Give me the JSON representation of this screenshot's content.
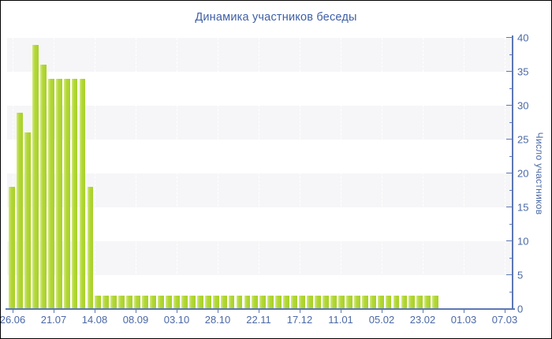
{
  "chart_data": {
    "type": "bar",
    "title": "Динамика участников беседы",
    "xlabel": "",
    "ylabel": "Число участников",
    "x_tick_labels": [
      "26.06",
      "21.07",
      "14.08",
      "08.09",
      "03.10",
      "28.10",
      "22.11",
      "17.12",
      "11.01",
      "05.02",
      "23.02",
      "01.03",
      "07.03"
    ],
    "y_ticks": [
      0,
      5,
      10,
      15,
      20,
      25,
      30,
      35,
      40
    ],
    "y_minor_tick_step": 2.5,
    "ylim": [
      0,
      40
    ],
    "grid": "alternating 5-unit horizontal bands, faint dashed vertical lines at x ticks",
    "legend_position": "none",
    "values": [
      18,
      29,
      26,
      39,
      36,
      34,
      34,
      34,
      34,
      34,
      18,
      2,
      2,
      2,
      2,
      2,
      2,
      2,
      2,
      2,
      2,
      2,
      2,
      2,
      2,
      2,
      2,
      2,
      2,
      2,
      2,
      2,
      2,
      2,
      2,
      2,
      2,
      2,
      2,
      2,
      2,
      2,
      2,
      2,
      2,
      2,
      2,
      2,
      2,
      2,
      2,
      2,
      2,
      2,
      2
    ]
  },
  "colors": {
    "background": "#ffffff",
    "frame_border": "#000000",
    "bar": "#b3d837",
    "bar_edge_light": "#d3e987",
    "bar_dark": "#a8d028",
    "axis": "#5c77b3",
    "tick_label": "#4a68a6",
    "title": "#3e5fa6",
    "stripe": "#f6f6f8"
  }
}
